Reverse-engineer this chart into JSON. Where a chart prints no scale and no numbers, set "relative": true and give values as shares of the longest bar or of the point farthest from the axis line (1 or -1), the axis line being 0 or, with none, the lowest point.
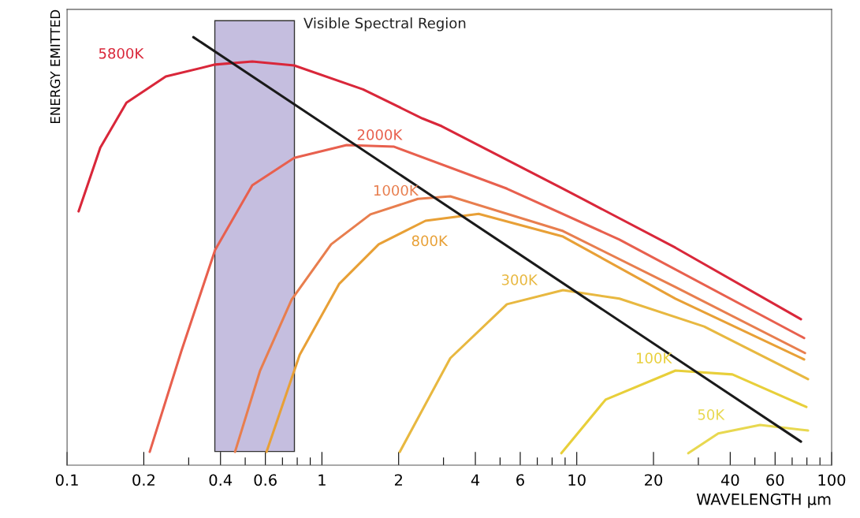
{
  "chart_data": {
    "type": "line",
    "xlabel": "WAVELENGTH µm",
    "ylabel": "ENERGY EMITTED",
    "relative": true,
    "log": "x",
    "grid": false,
    "legend": false,
    "marker": "none",
    "line_style": "solid",
    "xlim": [
      0.1,
      100
    ],
    "xticks": [
      0.1,
      0.2,
      {
        "value": 0.3,
        "label": null
      },
      0.4,
      {
        "value": 0.5,
        "label": null
      },
      0.6,
      {
        "value": 0.7,
        "label": null
      },
      {
        "value": 0.8,
        "label": null
      },
      {
        "value": 0.9,
        "label": null
      },
      1,
      2,
      {
        "value": 3,
        "label": null
      },
      4,
      {
        "value": 5,
        "label": null
      },
      6,
      {
        "value": 7,
        "label": null
      },
      {
        "value": 8,
        "label": null
      },
      {
        "value": 9,
        "label": null
      },
      10,
      20,
      {
        "value": 30,
        "label": null
      },
      40,
      {
        "value": 50,
        "label": null
      },
      60,
      {
        "value": 70,
        "label": null
      },
      {
        "value": 80,
        "label": null
      },
      {
        "value": 90,
        "label": null
      },
      100
    ],
    "bands": [
      {
        "axis": "x",
        "from": 0.38,
        "to": 0.78,
        "label": "Visible Spectral Region",
        "color": "#c5bedf"
      }
    ],
    "series": [
      {
        "name": "5800K",
        "color": "#d9273a",
        "x": [
          0.111,
          0.135,
          0.171,
          0.244,
          0.381,
          0.533,
          0.778,
          1.45,
          2.48,
          2.95,
          8.83,
          24.4,
          75.8
        ],
        "values": [
          0.593,
          0.742,
          0.847,
          0.908,
          0.936,
          0.943,
          0.934,
          0.878,
          0.81,
          0.792,
          0.646,
          0.508,
          0.341
        ]
      },
      {
        "name": "2000K",
        "color": "#e8604e",
        "x": [
          0.211,
          0.281,
          0.381,
          0.533,
          0.778,
          1.25,
          1.92,
          5.32,
          14.7,
          78.0
        ],
        "values": [
          0.031,
          0.267,
          0.503,
          0.654,
          0.718,
          0.748,
          0.744,
          0.646,
          0.527,
          0.297
        ]
      },
      {
        "name": "1000K",
        "color": "#e87e4e",
        "x": [
          0.456,
          0.572,
          0.761,
          1.087,
          1.55,
          2.38,
          3.19,
          8.83,
          24.4,
          78.6
        ],
        "values": [
          0.031,
          0.221,
          0.387,
          0.516,
          0.586,
          0.622,
          0.628,
          0.547,
          0.416,
          0.262
        ]
      },
      {
        "name": "800K",
        "color": "#e8a036",
        "x": [
          0.606,
          0.818,
          1.17,
          1.67,
          2.55,
          4.12,
          8.83,
          24.4,
          78.0
        ],
        "values": [
          0.031,
          0.258,
          0.424,
          0.516,
          0.571,
          0.587,
          0.534,
          0.389,
          0.247
        ]
      },
      {
        "name": "300K",
        "color": "#e8b840",
        "x": [
          2.02,
          3.19,
          5.32,
          8.83,
          14.7,
          31.6,
          80.8
        ],
        "values": [
          0.031,
          0.25,
          0.376,
          0.409,
          0.389,
          0.324,
          0.201
        ]
      },
      {
        "name": "100K",
        "color": "#e8cf3a",
        "x": [
          8.7,
          12.97,
          24.4,
          40.8,
          79.6
        ],
        "values": [
          0.028,
          0.153,
          0.221,
          0.212,
          0.136
        ]
      },
      {
        "name": "50K",
        "color": "#e8d850",
        "x": [
          27.4,
          35.9,
          52.4,
          80.8
        ],
        "values": [
          0.028,
          0.074,
          0.094,
          0.081
        ]
      },
      {
        "color": "#1a1a1a",
        "x": [
          0.313,
          75.8
        ],
        "values": [
          1.0,
          0.055
        ]
      }
    ]
  }
}
